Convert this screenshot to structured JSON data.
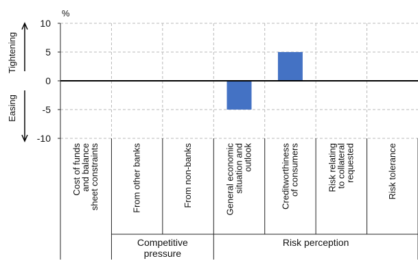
{
  "chart_data": {
    "type": "bar",
    "unit_label": "%",
    "categories": [
      [
        "Cost of funds",
        "and balance",
        "sheet constraints"
      ],
      [
        "From other banks"
      ],
      [
        "From non-banks"
      ],
      [
        "General economic",
        "situation and",
        "outlook"
      ],
      [
        "Creditworthiness",
        "of consumers"
      ],
      [
        "Risk relating",
        "to collateral",
        "requested"
      ],
      [
        "Risk tolerance"
      ]
    ],
    "values": [
      0,
      0,
      0,
      -5,
      5,
      0,
      0
    ],
    "ylim": [
      -10,
      10
    ],
    "yticks": [
      10,
      5,
      0,
      -5,
      -10
    ],
    "grid": true,
    "bar_color": "#4472C4",
    "direction_labels": {
      "up": "Tightening",
      "down": "Easing"
    },
    "groups": [
      {
        "label": [
          "Competitive",
          "pressure"
        ],
        "start": 1,
        "end": 2
      },
      {
        "label": [
          "Risk perception"
        ],
        "start": 3,
        "end": 6
      }
    ]
  }
}
